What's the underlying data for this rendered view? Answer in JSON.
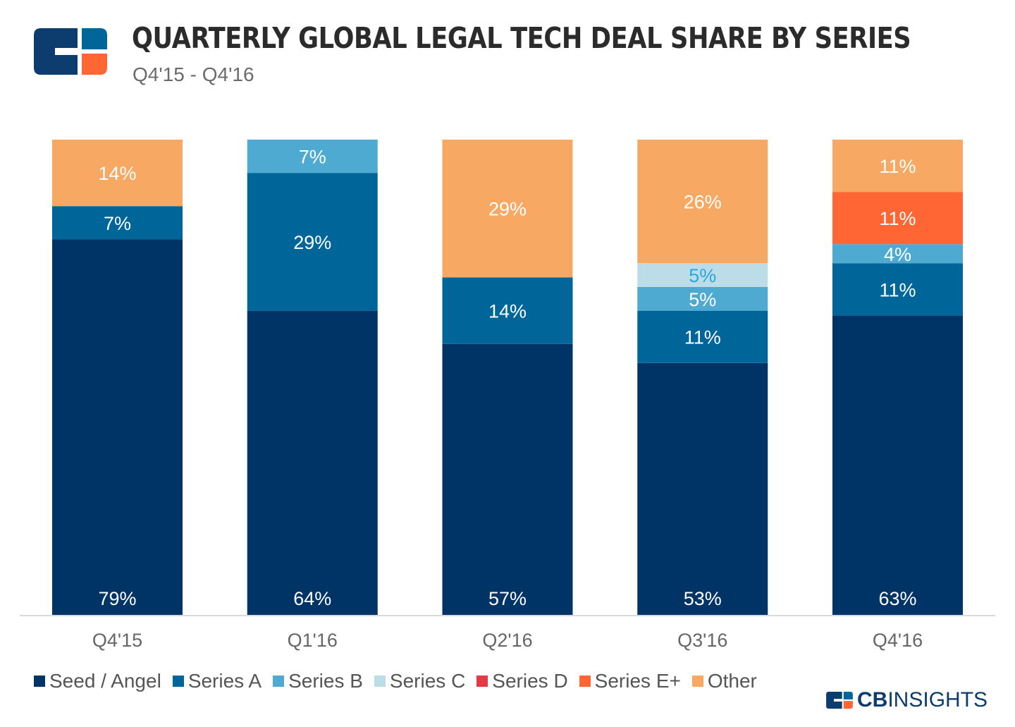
{
  "header": {
    "title": "QUARTERLY GLOBAL LEGAL TECH DEAL SHARE BY SERIES",
    "subtitle": "Q4'15 - Q4'16"
  },
  "brand": {
    "bold": "CB",
    "light": "INSIGHTS"
  },
  "colors": {
    "Seed / Angel": "#003366",
    "Series A": "#006699",
    "Series B": "#4eaad0",
    "Series C": "#bcdde8",
    "Series D": "#e63946",
    "Series E+": "#ff6633",
    "Other": "#f7a862"
  },
  "chart_data": {
    "type": "bar",
    "stacked": true,
    "title": "QUARTERLY GLOBAL LEGAL TECH DEAL SHARE BY SERIES",
    "subtitle": "Q4'15 - Q4'16",
    "xlabel": "",
    "ylabel": "",
    "ylim": [
      0,
      100
    ],
    "grid": false,
    "legend_position": "bottom-left",
    "categories": [
      "Q4'15",
      "Q1'16",
      "Q2'16",
      "Q3'16",
      "Q4'16"
    ],
    "series": [
      {
        "name": "Seed / Angel",
        "values": [
          79,
          64,
          57,
          53,
          63
        ],
        "labels": [
          "79%",
          "64%",
          "57%",
          "53%",
          "63%"
        ]
      },
      {
        "name": "Series A",
        "values": [
          7,
          29,
          14,
          11,
          11
        ],
        "labels": [
          "7%",
          "29%",
          "14%",
          "11%",
          "11%"
        ]
      },
      {
        "name": "Series B",
        "values": [
          0,
          7,
          0,
          5,
          4
        ],
        "labels": [
          "",
          "7%",
          "",
          "5%",
          "4%"
        ]
      },
      {
        "name": "Series C",
        "values": [
          0,
          0,
          0,
          5,
          0
        ],
        "labels": [
          "",
          "",
          "",
          "5%",
          ""
        ]
      },
      {
        "name": "Series D",
        "values": [
          0,
          0,
          0,
          0,
          0
        ],
        "labels": [
          "",
          "",
          "",
          "",
          ""
        ]
      },
      {
        "name": "Series E+",
        "values": [
          0,
          0,
          0,
          0,
          11
        ],
        "labels": [
          "",
          "",
          "",
          "",
          "11%"
        ]
      },
      {
        "name": "Other",
        "values": [
          14,
          0,
          29,
          26,
          11
        ],
        "labels": [
          "14%",
          "",
          "29%",
          "26%",
          "11%"
        ]
      }
    ],
    "legend": [
      "Seed / Angel",
      "Series A",
      "Series B",
      "Series C",
      "Series D",
      "Series E+",
      "Other"
    ]
  }
}
